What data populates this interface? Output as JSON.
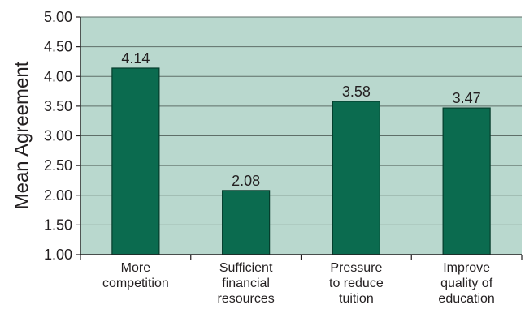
{
  "chart_data": {
    "type": "bar",
    "title": "",
    "xlabel": "",
    "ylabel": "Mean Agreement",
    "ylim": [
      1.0,
      5.0
    ],
    "yticks": [
      "1.00",
      "1.50",
      "2.00",
      "2.50",
      "3.00",
      "3.50",
      "4.00",
      "4.50",
      "5.00"
    ],
    "categories": [
      [
        "More",
        "competition"
      ],
      [
        "Sufficient",
        "financial",
        "resources"
      ],
      [
        "Pressure",
        "to reduce",
        "tuition"
      ],
      [
        "Improve",
        "quality of",
        "education"
      ]
    ],
    "values": [
      4.14,
      2.08,
      3.58,
      3.47
    ],
    "value_labels": [
      "4.14",
      "2.08",
      "3.58",
      "3.47"
    ],
    "grid": true,
    "legend": "none",
    "colors": {
      "plot_background": "#b9d8ce",
      "bar_fill": "#0b6b4f",
      "bar_stroke": "#053d2c",
      "gridline": "#5f6f69",
      "axis": "#231f20",
      "text": "#231f20"
    }
  }
}
